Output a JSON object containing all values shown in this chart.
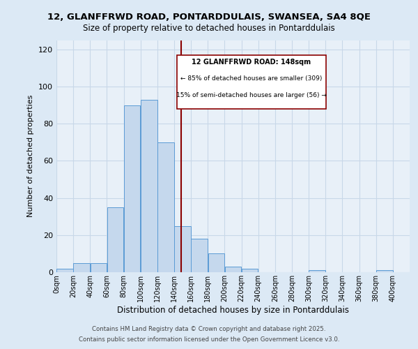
{
  "title": "12, GLANFFRWD ROAD, PONTARDDULAIS, SWANSEA, SA4 8QE",
  "subtitle": "Size of property relative to detached houses in Pontarddulais",
  "xlabel": "Distribution of detached houses by size in Pontarddulais",
  "ylabel": "Number of detached properties",
  "bar_color": "#c5d8ed",
  "bar_edge_color": "#5b9bd5",
  "background_color": "#dce9f5",
  "plot_bg_color": "#e8f0f8",
  "vline_color": "#8b0000",
  "vline_x": 148,
  "annotation_title": "12 GLANFFRWD ROAD: 148sqm",
  "annotation_line1": "← 85% of detached houses are smaller (309)",
  "annotation_line2": "15% of semi-detached houses are larger (56) →",
  "bins": [
    0,
    20,
    40,
    60,
    80,
    100,
    120,
    140,
    160,
    180,
    200,
    220,
    240,
    260,
    280,
    300,
    320,
    340,
    360,
    380,
    400
  ],
  "counts": [
    2,
    5,
    5,
    35,
    90,
    93,
    70,
    25,
    18,
    10,
    3,
    2,
    0,
    0,
    0,
    1,
    0,
    0,
    0,
    1
  ],
  "footer1": "Contains HM Land Registry data © Crown copyright and database right 2025.",
  "footer2": "Contains public sector information licensed under the Open Government Licence v3.0.",
  "ylim": [
    0,
    125
  ],
  "yticks": [
    0,
    20,
    40,
    60,
    80,
    100,
    120
  ],
  "grid_color": "#c8d8e8",
  "title_fontsize": 9.5,
  "subtitle_fontsize": 8.5
}
